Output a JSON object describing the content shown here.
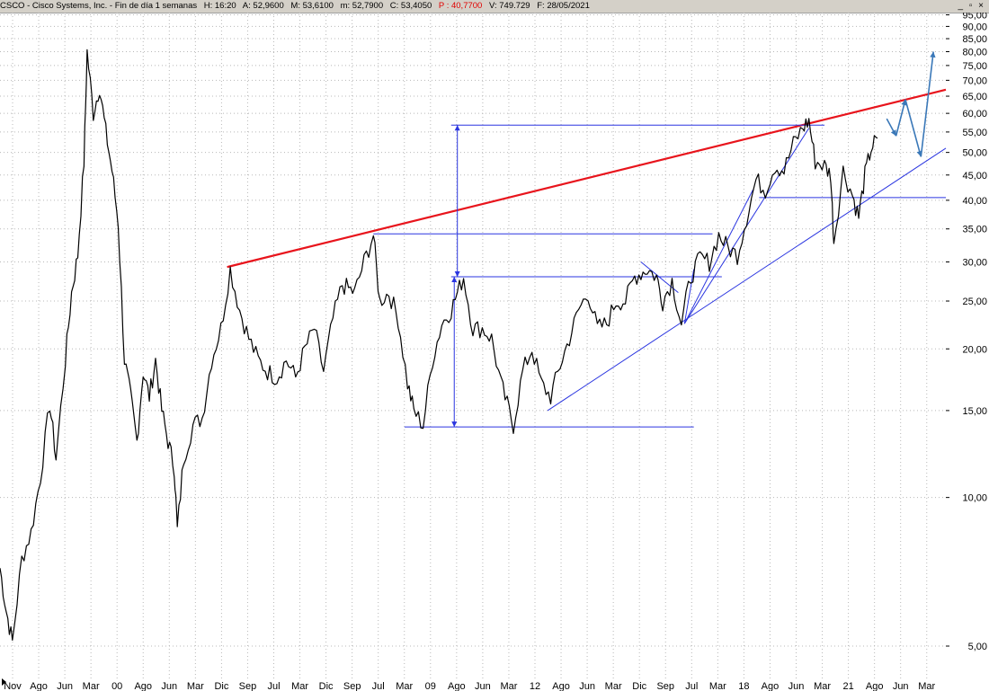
{
  "header": {
    "symbol": "CSCO - Cisco Systems, Inc. - Fin de día 1 semanas",
    "time": "H: 16:20",
    "open": "A: 52,9600",
    "high": "M: 53,6100",
    "low": "m: 52,7900",
    "close": "C: 53,4050",
    "pointer": "P : 40,7700",
    "volume": "V: 749.729",
    "date": "F: 28/05/2021",
    "controls": "_ ▫ ×"
  },
  "colors": {
    "price": "#000000",
    "resistance": "#e8141c",
    "trendlines": "#2a35e0",
    "projection": "#3a78b8",
    "grid": "#b8b8b8",
    "pointer_text": "#e00000"
  },
  "chart_data": {
    "type": "line",
    "title": "",
    "xlabel": "",
    "ylabel": "",
    "y_scale": "log",
    "ylim": [
      4.3,
      96
    ],
    "grid": true,
    "y_ticks": [
      5,
      10,
      15,
      20,
      25,
      30,
      35,
      40,
      45,
      50,
      55,
      60,
      65,
      70,
      75,
      80,
      85,
      90,
      95
    ],
    "y_tick_labels": [
      "5,00",
      "10,00",
      "15,00",
      "20,00",
      "25,00",
      "30,00",
      "35,00",
      "40,00",
      "45,00",
      "50,00",
      "55,00",
      "60,00",
      "65,00",
      "70,00",
      "75,00",
      "80,00",
      "85,00",
      "90,00",
      "95,00"
    ],
    "x_tick_labels": [
      "Nov",
      "Ago",
      "Jun",
      "Mar",
      "00",
      "Ago",
      "Jun",
      "Mar",
      "Dic",
      "Sep",
      "Jul",
      "Mar",
      "Dic",
      "Sep",
      "Jul",
      "Mar",
      "09",
      "Ago",
      "Jun",
      "Mar",
      "12",
      "Ago",
      "Jun",
      "Mar",
      "Dic",
      "Sep",
      "Jul",
      "Mar",
      "18",
      "Ago",
      "Jun",
      "Mar",
      "21",
      "Ago",
      "Jun",
      "Mar"
    ],
    "x_range": [
      "1997-11",
      "2023-03"
    ],
    "series": [
      {
        "values_by_date": [
          [
            "1997-11",
            7.2
          ],
          [
            "1998-01",
            5.9
          ],
          [
            "1998-03",
            5.1
          ],
          [
            "1998-06",
            7.5
          ],
          [
            "1998-09",
            8.5
          ],
          [
            "1998-12",
            11.0
          ],
          [
            "1999-03",
            15.5
          ],
          [
            "1999-05",
            12.0
          ],
          [
            "1999-08",
            19.0
          ],
          [
            "1999-10",
            26.0
          ],
          [
            "1999-12",
            31.0
          ],
          [
            "2000-02",
            48.0
          ],
          [
            "2000-03",
            80.0
          ],
          [
            "2000-05",
            60.0
          ],
          [
            "2000-07",
            68.0
          ],
          [
            "2000-09",
            55.0
          ],
          [
            "2000-11",
            46.0
          ],
          [
            "2001-01",
            36.0
          ],
          [
            "2001-03",
            19.0
          ],
          [
            "2001-05",
            16.0
          ],
          [
            "2001-07",
            13.0
          ],
          [
            "2001-09",
            18.0
          ],
          [
            "2001-11",
            16.0
          ],
          [
            "2002-01",
            19.0
          ],
          [
            "2002-03",
            15.0
          ],
          [
            "2002-05",
            13.0
          ],
          [
            "2002-07",
            11.5
          ],
          [
            "2002-08",
            8.6
          ],
          [
            "2002-10",
            12.0
          ],
          [
            "2003-01",
            14.0
          ],
          [
            "2003-04",
            14.5
          ],
          [
            "2003-07",
            19.0
          ],
          [
            "2003-10",
            22.0
          ],
          [
            "2004-01",
            29.0
          ],
          [
            "2004-04",
            24.0
          ],
          [
            "2004-07",
            21.0
          ],
          [
            "2004-10",
            19.0
          ],
          [
            "2005-01",
            18.0
          ],
          [
            "2005-04",
            17.5
          ],
          [
            "2005-07",
            19.0
          ],
          [
            "2005-10",
            17.5
          ],
          [
            "2006-01",
            20.0
          ],
          [
            "2006-04",
            22.0
          ],
          [
            "2006-07",
            18.0
          ],
          [
            "2006-10",
            23.0
          ],
          [
            "2007-01",
            27.0
          ],
          [
            "2007-05",
            26.0
          ],
          [
            "2007-08",
            30.0
          ],
          [
            "2007-11",
            34.0
          ],
          [
            "2008-01",
            25.0
          ],
          [
            "2008-04",
            26.0
          ],
          [
            "2008-07",
            23.0
          ],
          [
            "2008-10",
            17.0
          ],
          [
            "2008-12",
            15.0
          ],
          [
            "2009-03",
            14.0
          ],
          [
            "2009-06",
            19.0
          ],
          [
            "2009-09",
            22.5
          ],
          [
            "2009-12",
            24.0
          ],
          [
            "2010-04",
            28.0
          ],
          [
            "2010-07",
            22.0
          ],
          [
            "2010-10",
            22.0
          ],
          [
            "2011-01",
            21.0
          ],
          [
            "2011-04",
            17.0
          ],
          [
            "2011-08",
            14.0
          ],
          [
            "2011-11",
            18.0
          ],
          [
            "2012-02",
            20.0
          ],
          [
            "2012-05",
            17.0
          ],
          [
            "2012-08",
            16.0
          ],
          [
            "2012-11",
            18.5
          ],
          [
            "2013-02",
            21.0
          ],
          [
            "2013-05",
            24.0
          ],
          [
            "2013-08",
            26.0
          ],
          [
            "2013-11",
            22.0
          ],
          [
            "2014-02",
            22.5
          ],
          [
            "2014-05",
            25.0
          ],
          [
            "2014-08",
            25.0
          ],
          [
            "2014-11",
            28.0
          ],
          [
            "2015-03",
            29.0
          ],
          [
            "2015-06",
            28.0
          ],
          [
            "2015-08",
            25.0
          ],
          [
            "2015-11",
            27.5
          ],
          [
            "2016-02",
            22.5
          ],
          [
            "2016-05",
            28.0
          ],
          [
            "2016-08",
            30.5
          ],
          [
            "2016-11",
            30.0
          ],
          [
            "2017-02",
            34.0
          ],
          [
            "2017-05",
            32.0
          ],
          [
            "2017-08",
            31.0
          ],
          [
            "2017-11",
            37.0
          ],
          [
            "2018-02",
            44.0
          ],
          [
            "2018-05",
            42.0
          ],
          [
            "2018-08",
            47.0
          ],
          [
            "2018-11",
            46.0
          ],
          [
            "2019-02",
            52.0
          ],
          [
            "2019-05",
            56.0
          ],
          [
            "2019-07",
            58.0
          ],
          [
            "2019-09",
            48.0
          ],
          [
            "2019-12",
            47.0
          ],
          [
            "2020-02",
            45.0
          ],
          [
            "2020-03",
            33.0
          ],
          [
            "2020-06",
            46.0
          ],
          [
            "2020-09",
            41.0
          ],
          [
            "2020-11",
            37.0
          ],
          [
            "2021-01",
            45.0
          ],
          [
            "2021-03",
            51.0
          ],
          [
            "2021-05",
            53.4
          ]
        ]
      }
    ],
    "projection": [
      [
        "2021-08",
        58.5
      ],
      [
        "2021-11",
        54.0
      ],
      [
        "2022-02",
        64.0
      ],
      [
        "2022-07",
        49.0
      ],
      [
        "2022-11",
        80.0
      ]
    ],
    "trendlines": [
      {
        "color": "red",
        "from": [
          "2003-12",
          29.3
        ],
        "to": [
          "2023-03",
          67.0
        ]
      },
      {
        "color": "blue",
        "from": [
          "2007-11",
          34.2
        ],
        "to": [
          "2016-12",
          34.2
        ]
      },
      {
        "color": "blue",
        "from": [
          "2008-09",
          13.9
        ],
        "to": [
          "2016-06",
          13.9
        ]
      },
      {
        "color": "blue",
        "from": [
          "2009-12",
          28.0
        ],
        "to": [
          "2017-03",
          28.0
        ]
      },
      {
        "color": "blue",
        "from": [
          "2009-12",
          56.8
        ],
        "to": [
          "2019-12",
          56.8
        ]
      },
      {
        "color": "blue",
        "from": [
          "2018-03",
          40.5
        ],
        "to": [
          "2023-03",
          40.5
        ]
      },
      {
        "color": "blue",
        "from": [
          "2012-07",
          15.0
        ],
        "to": [
          "2023-03",
          51.0
        ]
      },
      {
        "color": "blue",
        "from": [
          "2016-03",
          22.5
        ],
        "to": [
          "2019-07",
          56.0
        ]
      },
      {
        "color": "blue",
        "from": [
          "2016-03",
          22.5
        ],
        "to": [
          "2018-01",
          42.0
        ]
      },
      {
        "color": "blue",
        "from": [
          "2015-01",
          30.0
        ],
        "to": [
          "2016-01",
          26.0
        ]
      },
      {
        "color": "blue",
        "from": [
          "2016-06",
          29.0
        ],
        "to": [
          "2016-03",
          22.5
        ]
      }
    ],
    "measures": [
      {
        "at": "2010-01",
        "from": 13.9,
        "to": 28.0
      },
      {
        "at": "2010-02",
        "from": 28.0,
        "to": 56.8
      }
    ]
  }
}
